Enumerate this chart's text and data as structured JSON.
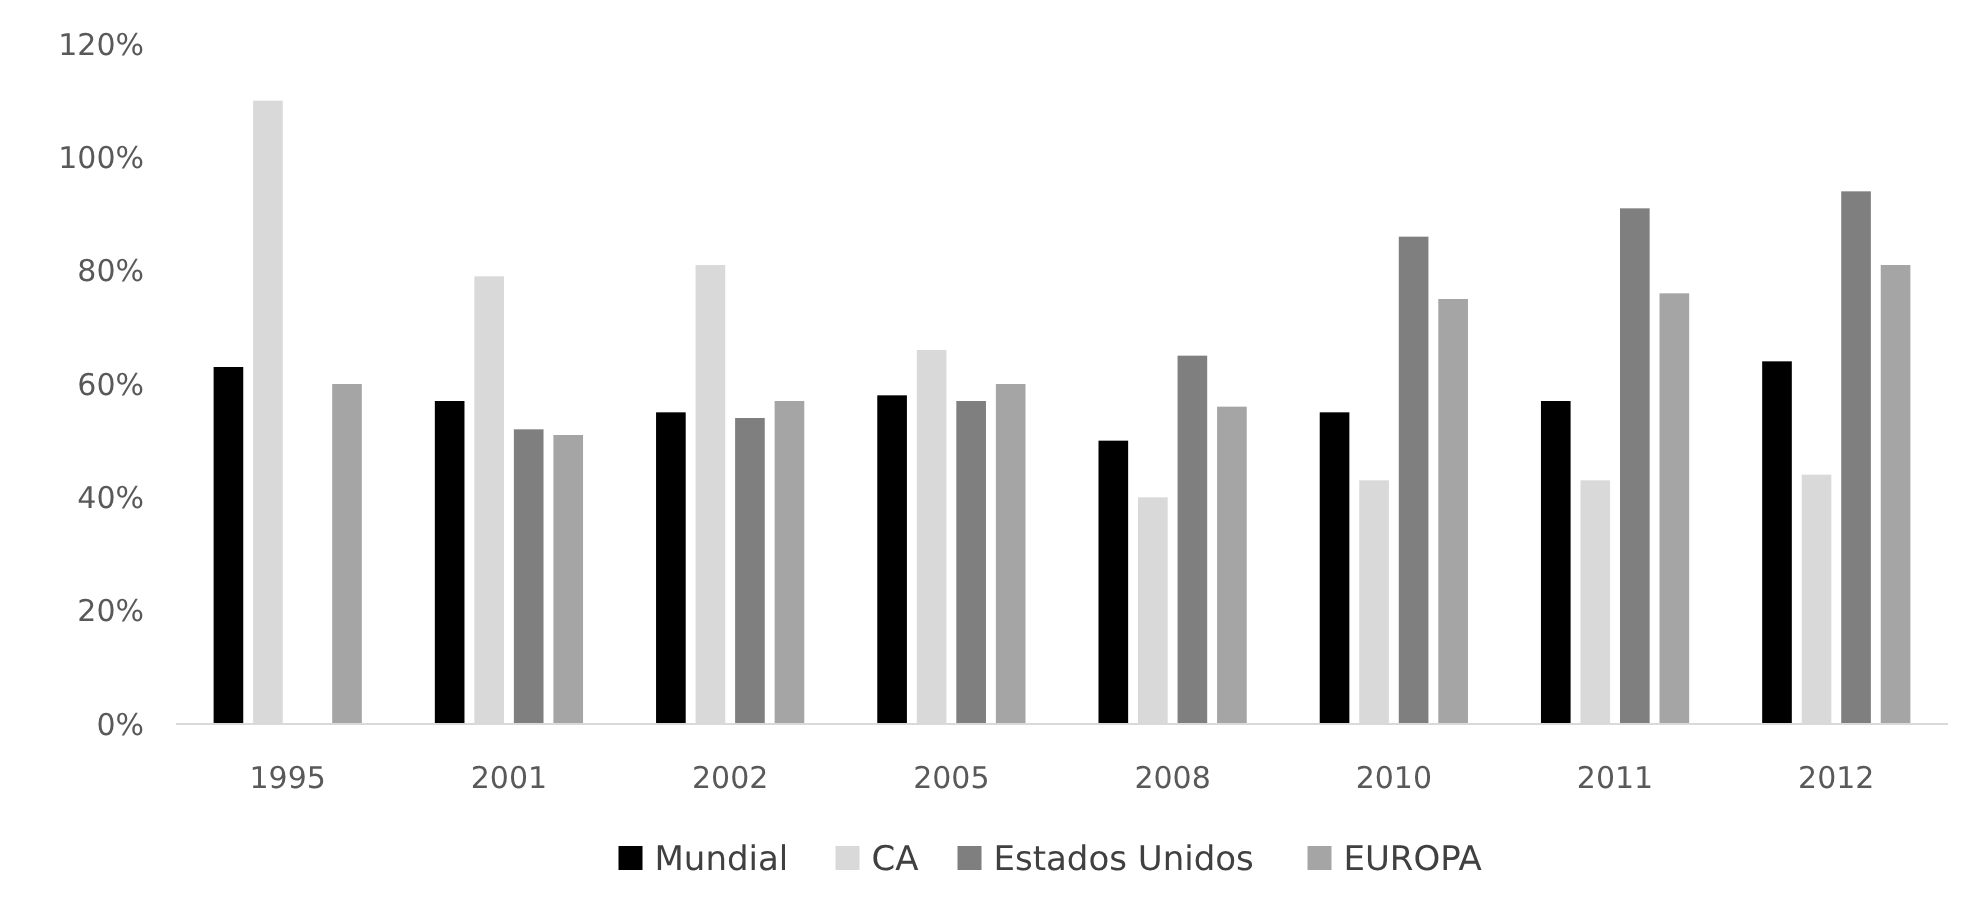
{
  "chart_data": {
    "type": "bar",
    "categories": [
      "1995",
      "2001",
      "2002",
      "2005",
      "2008",
      "2010",
      "2011",
      "2012"
    ],
    "series": [
      {
        "name": "Mundial",
        "color": "#000000",
        "values": [
          63,
          57,
          55,
          58,
          50,
          55,
          57,
          64
        ]
      },
      {
        "name": "CA",
        "color": "#d9d9d9",
        "values": [
          110,
          79,
          81,
          66,
          40,
          43,
          43,
          44
        ]
      },
      {
        "name": "Estados Unidos",
        "color": "#7f7f7f",
        "values": [
          null,
          52,
          54,
          57,
          65,
          86,
          91,
          94
        ]
      },
      {
        "name": "EUROPA",
        "color": "#a5a5a5",
        "values": [
          60,
          51,
          57,
          60,
          56,
          75,
          76,
          81
        ]
      }
    ],
    "ylim": [
      0,
      120
    ],
    "yticks": [
      {
        "value": 0,
        "label": "0%"
      },
      {
        "value": 20,
        "label": "20%"
      },
      {
        "value": 40,
        "label": "40%"
      },
      {
        "value": 60,
        "label": "60%"
      },
      {
        "value": 80,
        "label": "80%"
      },
      {
        "value": 100,
        "label": "100%"
      },
      {
        "value": 120,
        "label": "120%"
      }
    ],
    "grid": false,
    "legend": "bottom"
  }
}
